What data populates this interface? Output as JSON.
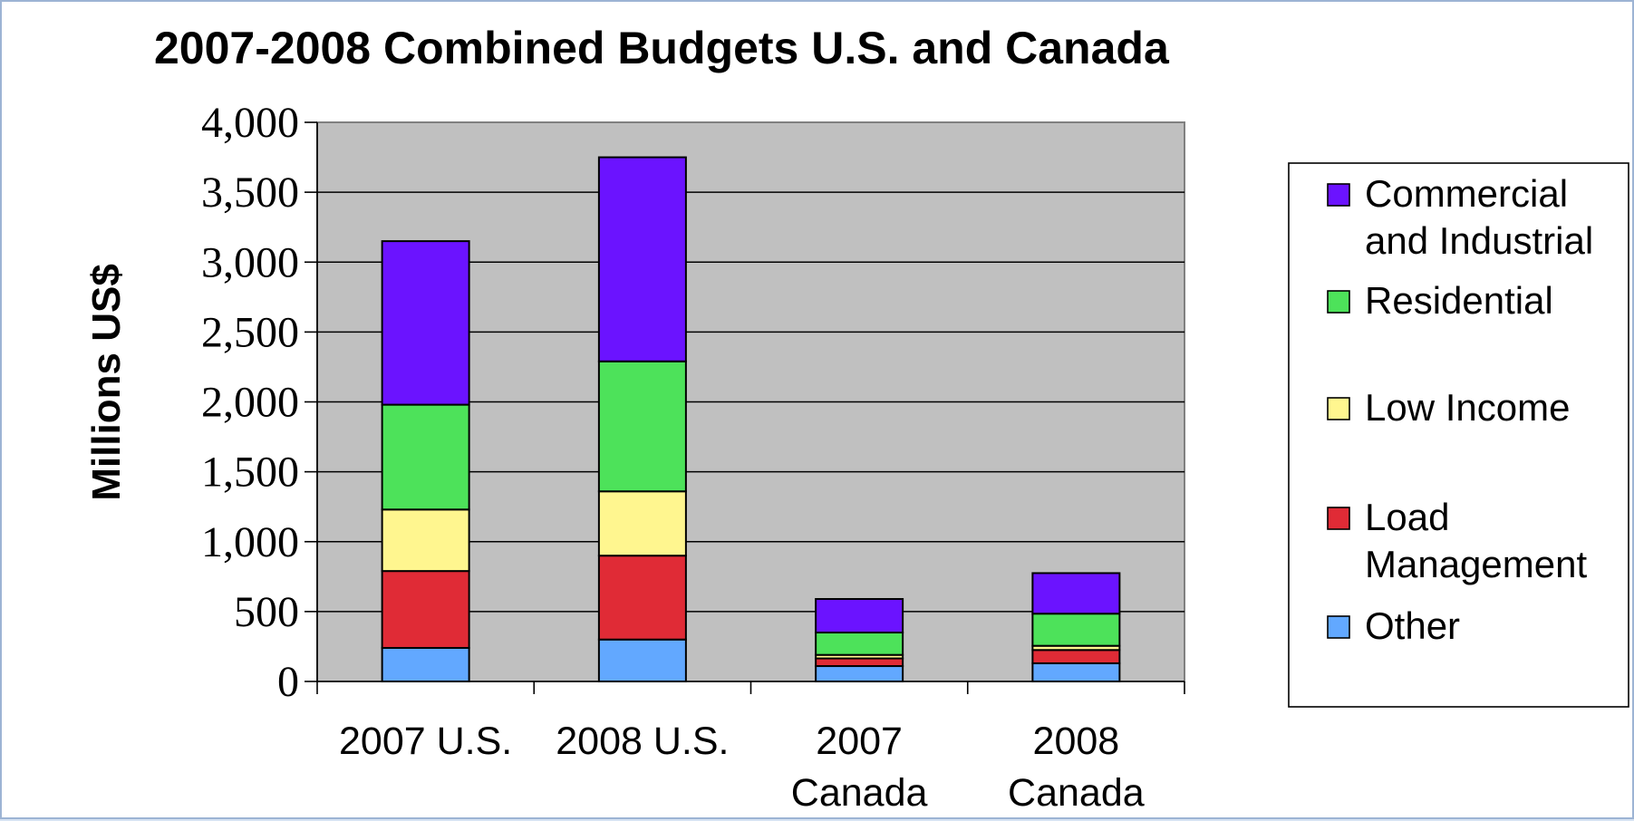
{
  "chart_data": {
    "type": "bar",
    "stacked": true,
    "title": "2007-2008 Combined Budgets U.S. and Canada",
    "xlabel": "",
    "ylabel": "Millions US$",
    "ylim": [
      0,
      4000
    ],
    "yticks": [
      "0",
      "500",
      "1,000",
      "1,500",
      "2,000",
      "2,500",
      "3,000",
      "3,500",
      "4,000"
    ],
    "ytick_values": [
      0,
      500,
      1000,
      1500,
      2000,
      2500,
      3000,
      3500,
      4000
    ],
    "categories": [
      [
        "2007 U.S."
      ],
      [
        "2008 U.S."
      ],
      [
        "2007",
        "Canada"
      ],
      [
        "2008",
        "Canada"
      ]
    ],
    "series": [
      {
        "name": "Other",
        "color": "#62a8ff",
        "values": [
          240,
          300,
          110,
          130
        ]
      },
      {
        "name": "Load Management",
        "color": "#e02b36",
        "values": [
          550,
          600,
          55,
          95
        ]
      },
      {
        "name": "Low Income",
        "color": "#fff68f",
        "values": [
          440,
          460,
          25,
          30
        ]
      },
      {
        "name": "Residential",
        "color": "#4de25a",
        "values": [
          750,
          930,
          160,
          230
        ]
      },
      {
        "name": "Commercial and Industrial",
        "color": "#6b13ff",
        "values": [
          1170,
          1460,
          240,
          290
        ]
      }
    ],
    "legend": {
      "placement": "right",
      "items": [
        {
          "lines": [
            "Commercial",
            "and Industrial"
          ],
          "color": "#6b13ff"
        },
        {
          "lines": [
            "Residential"
          ],
          "color": "#4de25a"
        },
        {
          "lines": [
            "Low Income"
          ],
          "color": "#fff68f"
        },
        {
          "lines": [
            "Load",
            "Management"
          ],
          "color": "#e02b36"
        },
        {
          "lines": [
            "Other"
          ],
          "color": "#62a8ff"
        }
      ]
    },
    "plot_background": "#c0c0c0",
    "grid": true
  }
}
